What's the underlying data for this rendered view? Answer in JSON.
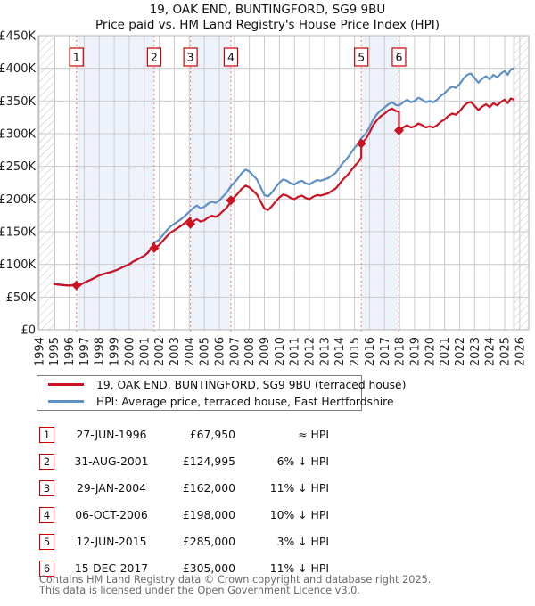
{
  "title": {
    "line1": "19, OAK END, BUNTINGFORD, SG9 9BU",
    "line2": "Price paid vs. HM Land Registry's House Price Index (HPI)"
  },
  "legend": {
    "items": [
      {
        "label": "19, OAK END, BUNTINGFORD, SG9 9BU (terraced house)",
        "color": "#cc1122"
      },
      {
        "label": "HPI: Average price, terraced house, East Hertfordshire",
        "color": "#5f8fc7"
      }
    ]
  },
  "table": {
    "rows": [
      {
        "num": "1",
        "date": "27-JUN-1996",
        "price": "£67,950",
        "hpi": "≈ HPI"
      },
      {
        "num": "2",
        "date": "31-AUG-2001",
        "price": "£124,995",
        "hpi": "6% ↓ HPI"
      },
      {
        "num": "3",
        "date": "29-JAN-2004",
        "price": "£162,000",
        "hpi": "11% ↓ HPI"
      },
      {
        "num": "4",
        "date": "06-OCT-2006",
        "price": "£198,000",
        "hpi": "10% ↓ HPI"
      },
      {
        "num": "5",
        "date": "12-JUN-2015",
        "price": "£285,000",
        "hpi": "3% ↓ HPI"
      },
      {
        "num": "6",
        "date": "15-DEC-2017",
        "price": "£305,000",
        "hpi": "11% ↓ HPI"
      }
    ]
  },
  "footer": {
    "line1": "Contains HM Land Registry data © Crown copyright and database right 2025.",
    "line2": "This data is licensed under the Open Government Licence v3.0."
  },
  "chart_data": {
    "type": "line",
    "title": "19, OAK END, BUNTINGFORD, SG9 9BU — Price paid vs. HPI",
    "value_unit": "GBP thousands",
    "ylim": [
      0,
      450
    ],
    "y_ticks": [
      "£0",
      "£50K",
      "£100K",
      "£150K",
      "£200K",
      "£250K",
      "£300K",
      "£350K",
      "£400K",
      "£450K"
    ],
    "x_ticks": [
      1994,
      1995,
      1996,
      1997,
      1998,
      1999,
      2000,
      2001,
      2002,
      2003,
      2004,
      2005,
      2006,
      2007,
      2008,
      2009,
      2010,
      2011,
      2012,
      2013,
      2014,
      2015,
      2016,
      2017,
      2018,
      2019,
      2020,
      2021,
      2022,
      2023,
      2024,
      2025,
      2026
    ],
    "x_range": [
      1993.95,
      2026.6
    ],
    "data_start_year": 1995.0,
    "data_end_year": 2025.62,
    "bands": [
      [
        1996.49,
        2001.66
      ],
      [
        2004.08,
        2006.77
      ],
      [
        2015.45,
        2017.96
      ]
    ],
    "sales": [
      {
        "n": "1",
        "year": 1996.49,
        "price_gbp": 67950
      },
      {
        "n": "2",
        "year": 2001.66,
        "price_gbp": 124995
      },
      {
        "n": "3",
        "year": 2004.08,
        "price_gbp": 162000
      },
      {
        "n": "4",
        "year": 2006.77,
        "price_gbp": 198000
      },
      {
        "n": "5",
        "year": 2015.45,
        "price_gbp": 285000
      },
      {
        "n": "6",
        "year": 2017.96,
        "price_gbp": 305000
      }
    ],
    "colors": {
      "band": "#eef3fb",
      "grid": "#cbcbcb",
      "dashed": "#ee7777",
      "border": "#b2b2b2",
      "edge": "#555555",
      "hatch": "#c3c3cb",
      "axis_text": "#222222"
    },
    "legend_position": "bottom",
    "grid": true,
    "series": [
      {
        "name": "HPI: Average price, terraced house, East Hertfordshire",
        "color": "#5f8fc7",
        "points": [
          [
            1995.0,
            70.5
          ],
          [
            1995.25,
            69.5
          ],
          [
            1995.5,
            69
          ],
          [
            1995.75,
            68.5
          ],
          [
            1996.0,
            68
          ],
          [
            1996.25,
            68.3
          ],
          [
            1996.49,
            68
          ],
          [
            1996.75,
            69.2
          ],
          [
            1997.0,
            72.2
          ],
          [
            1997.25,
            74.7
          ],
          [
            1997.5,
            77.2
          ],
          [
            1997.75,
            80.2
          ],
          [
            1998.0,
            83.2
          ],
          [
            1998.25,
            85.2
          ],
          [
            1998.5,
            86.8
          ],
          [
            1998.75,
            88.2
          ],
          [
            1999.0,
            90.2
          ],
          [
            1999.25,
            92.2
          ],
          [
            1999.5,
            95.2
          ],
          [
            1999.75,
            97.8
          ],
          [
            2000.0,
            100.3
          ],
          [
            2000.25,
            104.3
          ],
          [
            2000.5,
            107.3
          ],
          [
            2000.75,
            110.3
          ],
          [
            2001.0,
            113.3
          ],
          [
            2001.25,
            118.3
          ],
          [
            2001.5,
            126.3
          ],
          [
            2001.66,
            133
          ],
          [
            2002.0,
            138
          ],
          [
            2002.25,
            145
          ],
          [
            2002.5,
            152
          ],
          [
            2002.75,
            158
          ],
          [
            2003.0,
            162
          ],
          [
            2003.25,
            166
          ],
          [
            2003.5,
            170
          ],
          [
            2003.75,
            175
          ],
          [
            2004.08,
            182
          ],
          [
            2004.25,
            186
          ],
          [
            2004.5,
            190
          ],
          [
            2004.75,
            186
          ],
          [
            2005.0,
            188
          ],
          [
            2005.25,
            193
          ],
          [
            2005.5,
            196
          ],
          [
            2005.75,
            194
          ],
          [
            2006.0,
            198
          ],
          [
            2006.25,
            204
          ],
          [
            2006.5,
            210
          ],
          [
            2006.77,
            220
          ],
          [
            2007.0,
            225
          ],
          [
            2007.25,
            232
          ],
          [
            2007.5,
            240
          ],
          [
            2007.75,
            245
          ],
          [
            2008.0,
            242
          ],
          [
            2008.25,
            236
          ],
          [
            2008.5,
            230
          ],
          [
            2008.75,
            218
          ],
          [
            2009.0,
            206
          ],
          [
            2009.25,
            204
          ],
          [
            2009.5,
            210
          ],
          [
            2009.75,
            218
          ],
          [
            2010.0,
            225
          ],
          [
            2010.25,
            230
          ],
          [
            2010.5,
            228
          ],
          [
            2010.75,
            224
          ],
          [
            2011.0,
            222
          ],
          [
            2011.25,
            226
          ],
          [
            2011.5,
            228
          ],
          [
            2011.75,
            224
          ],
          [
            2012.0,
            222
          ],
          [
            2012.25,
            226
          ],
          [
            2012.5,
            229
          ],
          [
            2012.75,
            228
          ],
          [
            2013.0,
            230
          ],
          [
            2013.25,
            232
          ],
          [
            2013.5,
            236
          ],
          [
            2013.75,
            240
          ],
          [
            2014.0,
            248
          ],
          [
            2014.25,
            256
          ],
          [
            2014.5,
            262
          ],
          [
            2014.75,
            270
          ],
          [
            2015.0,
            278
          ],
          [
            2015.25,
            285
          ],
          [
            2015.45,
            293
          ],
          [
            2015.75,
            300
          ],
          [
            2016.0,
            310
          ],
          [
            2016.25,
            322
          ],
          [
            2016.5,
            330
          ],
          [
            2016.75,
            336
          ],
          [
            2017.0,
            340
          ],
          [
            2017.25,
            345
          ],
          [
            2017.5,
            348
          ],
          [
            2017.75,
            344
          ],
          [
            2017.96,
            343
          ],
          [
            2018.25,
            348
          ],
          [
            2018.5,
            352
          ],
          [
            2018.75,
            348
          ],
          [
            2019.0,
            350
          ],
          [
            2019.25,
            355
          ],
          [
            2019.5,
            352
          ],
          [
            2019.75,
            348
          ],
          [
            2020.0,
            350
          ],
          [
            2020.25,
            348
          ],
          [
            2020.5,
            352
          ],
          [
            2020.75,
            358
          ],
          [
            2021.0,
            362
          ],
          [
            2021.25,
            368
          ],
          [
            2021.5,
            372
          ],
          [
            2021.75,
            370
          ],
          [
            2022.0,
            376
          ],
          [
            2022.25,
            384
          ],
          [
            2022.5,
            390
          ],
          [
            2022.75,
            392
          ],
          [
            2023.0,
            385
          ],
          [
            2023.25,
            378
          ],
          [
            2023.5,
            384
          ],
          [
            2023.75,
            388
          ],
          [
            2024.0,
            383
          ],
          [
            2024.25,
            390
          ],
          [
            2024.5,
            386
          ],
          [
            2024.75,
            392
          ],
          [
            2025.0,
            396
          ],
          [
            2025.2,
            390
          ],
          [
            2025.4,
            398
          ],
          [
            2025.6,
            400
          ]
        ]
      },
      {
        "name": "19, OAK END, BUNTINGFORD, SG9 9BU (terraced house)",
        "color": "#cc1122",
        "points": [
          [
            1995.0,
            70
          ],
          [
            1995.25,
            69
          ],
          [
            1995.5,
            68.5
          ],
          [
            1995.75,
            68
          ],
          [
            1996.0,
            67.5
          ],
          [
            1996.25,
            68
          ],
          [
            1996.49,
            67.95
          ],
          [
            1996.75,
            69
          ],
          [
            1997.0,
            72
          ],
          [
            1997.25,
            74.5
          ],
          [
            1997.5,
            77
          ],
          [
            1997.75,
            80
          ],
          [
            1998.0,
            83
          ],
          [
            1998.25,
            85
          ],
          [
            1998.5,
            86.5
          ],
          [
            1998.75,
            88
          ],
          [
            1999.0,
            90
          ],
          [
            1999.25,
            92
          ],
          [
            1999.5,
            95
          ],
          [
            1999.75,
            97.5
          ],
          [
            2000.0,
            100
          ],
          [
            2000.25,
            104
          ],
          [
            2000.5,
            107
          ],
          [
            2000.75,
            110
          ],
          [
            2001.0,
            113
          ],
          [
            2001.25,
            118
          ],
          [
            2001.5,
            126
          ],
          [
            2001.66,
            132.9
          ],
          [
            2001.66,
            125
          ],
          [
            2002.0,
            129.7
          ],
          [
            2002.25,
            136.3
          ],
          [
            2002.5,
            142.8
          ],
          [
            2002.75,
            148.5
          ],
          [
            2003.0,
            152.2
          ],
          [
            2003.25,
            156
          ],
          [
            2003.5,
            159.8
          ],
          [
            2003.75,
            164.5
          ],
          [
            2004.08,
            171
          ],
          [
            2004.08,
            162
          ],
          [
            2004.25,
            165.5
          ],
          [
            2004.5,
            169.1
          ],
          [
            2004.75,
            165.5
          ],
          [
            2005.0,
            167.3
          ],
          [
            2005.25,
            171.8
          ],
          [
            2005.5,
            174.4
          ],
          [
            2005.75,
            172.7
          ],
          [
            2006.0,
            176.2
          ],
          [
            2006.25,
            181.6
          ],
          [
            2006.5,
            186.9
          ],
          [
            2006.77,
            195.8
          ],
          [
            2006.77,
            198
          ],
          [
            2007.0,
            202.5
          ],
          [
            2007.25,
            208.8
          ],
          [
            2007.5,
            216
          ],
          [
            2007.75,
            220.5
          ],
          [
            2008.0,
            217.8
          ],
          [
            2008.25,
            212.4
          ],
          [
            2008.5,
            207
          ],
          [
            2008.75,
            196.2
          ],
          [
            2009.0,
            185.4
          ],
          [
            2009.25,
            183
          ],
          [
            2009.5,
            189
          ],
          [
            2009.75,
            196.2
          ],
          [
            2010.0,
            202.5
          ],
          [
            2010.25,
            207
          ],
          [
            2010.5,
            205.2
          ],
          [
            2010.75,
            201.6
          ],
          [
            2011.0,
            199.8
          ],
          [
            2011.25,
            203.4
          ],
          [
            2011.5,
            205.2
          ],
          [
            2011.75,
            201.6
          ],
          [
            2012.0,
            199.8
          ],
          [
            2012.25,
            203.4
          ],
          [
            2012.5,
            206.1
          ],
          [
            2012.75,
            205.2
          ],
          [
            2013.0,
            207
          ],
          [
            2013.25,
            208.8
          ],
          [
            2013.5,
            212.4
          ],
          [
            2013.75,
            216
          ],
          [
            2014.0,
            223.2
          ],
          [
            2014.25,
            230.4
          ],
          [
            2014.5,
            235.8
          ],
          [
            2014.75,
            243
          ],
          [
            2015.0,
            250.2
          ],
          [
            2015.25,
            256.5
          ],
          [
            2015.45,
            263.7
          ],
          [
            2015.45,
            285
          ],
          [
            2015.75,
            291.8
          ],
          [
            2016.0,
            301.5
          ],
          [
            2016.25,
            313.2
          ],
          [
            2016.5,
            321
          ],
          [
            2016.75,
            326.8
          ],
          [
            2017.0,
            330.7
          ],
          [
            2017.25,
            335.6
          ],
          [
            2017.5,
            338.5
          ],
          [
            2017.75,
            334.6
          ],
          [
            2017.96,
            333.6
          ],
          [
            2017.96,
            305
          ],
          [
            2018.25,
            309.4
          ],
          [
            2018.5,
            313
          ],
          [
            2018.75,
            309.4
          ],
          [
            2019.0,
            311.2
          ],
          [
            2019.25,
            315.7
          ],
          [
            2019.5,
            313
          ],
          [
            2019.75,
            309.4
          ],
          [
            2020.0,
            311.2
          ],
          [
            2020.25,
            309.4
          ],
          [
            2020.5,
            313
          ],
          [
            2020.75,
            318.3
          ],
          [
            2021.0,
            321.9
          ],
          [
            2021.25,
            327.2
          ],
          [
            2021.5,
            330.8
          ],
          [
            2021.75,
            329
          ],
          [
            2022.0,
            334.3
          ],
          [
            2022.25,
            341.5
          ],
          [
            2022.5,
            346.8
          ],
          [
            2022.75,
            348.6
          ],
          [
            2023.0,
            342.3
          ],
          [
            2023.25,
            336.1
          ],
          [
            2023.5,
            341.5
          ],
          [
            2023.75,
            345
          ],
          [
            2024.0,
            340.5
          ],
          [
            2024.25,
            346.8
          ],
          [
            2024.5,
            343.2
          ],
          [
            2024.75,
            348.6
          ],
          [
            2025.0,
            352.1
          ],
          [
            2025.2,
            346.8
          ],
          [
            2025.4,
            353.9
          ],
          [
            2025.6,
            352
          ]
        ]
      }
    ]
  }
}
